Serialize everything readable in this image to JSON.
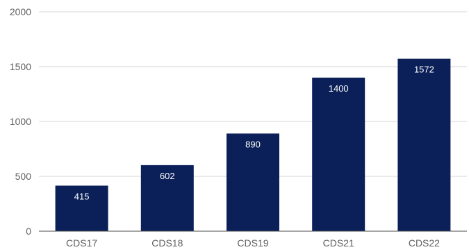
{
  "chart_data": {
    "type": "bar",
    "categories": [
      "CDS17",
      "CDS18",
      "CDS19",
      "CDS21",
      "CDS22"
    ],
    "values": [
      415,
      602,
      890,
      1400,
      1572
    ],
    "data_labels": [
      "415",
      "602",
      "890",
      "1400",
      "1572"
    ],
    "y_ticks": [
      0,
      500,
      1000,
      1500,
      2000
    ],
    "y_tick_labels": [
      "0",
      "500",
      "1000",
      "1500",
      "2000"
    ],
    "ylim": [
      0,
      2000
    ],
    "grid": true,
    "legend": "none"
  },
  "colors": {
    "bar": "#0b2059",
    "grid": "#d6d6d6",
    "axis": "#4d4d4d",
    "tick_text": "#5f5f5f",
    "label_text": "#ffffff"
  }
}
